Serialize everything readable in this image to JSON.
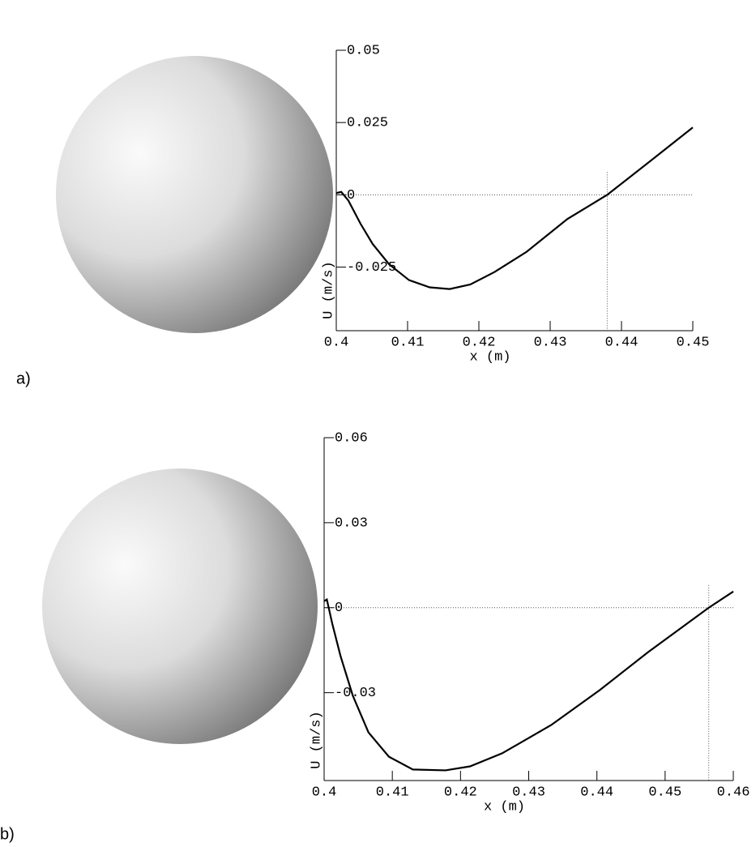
{
  "chart_data": [
    {
      "type": "line",
      "panel_label": "a)",
      "x_label": "x (m)",
      "y_label": "U (m/s)",
      "xlim": [
        0.4,
        0.45
      ],
      "xticks": [
        0.4,
        0.41,
        0.42,
        0.43,
        0.44,
        0.45
      ],
      "ylim": [
        -0.047,
        0.05
      ],
      "yticks": [
        -0.025,
        0,
        0.025,
        0.05
      ],
      "color": "#000000",
      "crossing_x": 0.438,
      "x": [
        0.4,
        0.4007,
        0.4017,
        0.4034,
        0.4051,
        0.4074,
        0.4102,
        0.4131,
        0.4159,
        0.4188,
        0.4222,
        0.4267,
        0.4324,
        0.438,
        0.4438,
        0.45
      ],
      "values": [
        0.0006,
        0.001,
        -0.002,
        -0.01,
        -0.017,
        -0.024,
        -0.0295,
        -0.032,
        -0.0326,
        -0.031,
        -0.0267,
        -0.0197,
        -0.0084,
        0,
        0.0112,
        0.0233
      ]
    },
    {
      "type": "line",
      "panel_label": "b)",
      "x_label": "x (m)",
      "y_label": "U (m/s)",
      "xlim": [
        0.4,
        0.46
      ],
      "xticks": [
        0.4,
        0.41,
        0.42,
        0.43,
        0.44,
        0.45,
        0.46
      ],
      "ylim": [
        -0.061,
        0.06
      ],
      "yticks": [
        -0.03,
        0,
        0.03,
        0.06
      ],
      "color": "#000000",
      "crossing_x": 0.4564,
      "x": [
        0.4,
        0.4004,
        0.4012,
        0.4024,
        0.4042,
        0.4065,
        0.4095,
        0.413,
        0.4178,
        0.4214,
        0.4261,
        0.4333,
        0.4404,
        0.4475,
        0.4564,
        0.46
      ],
      "values": [
        0.0023,
        0.0029,
        -0.0057,
        -0.017,
        -0.031,
        -0.044,
        -0.0526,
        -0.0571,
        -0.0574,
        -0.056,
        -0.0514,
        -0.0414,
        -0.0291,
        -0.0157,
        0,
        0.0057
      ]
    }
  ]
}
